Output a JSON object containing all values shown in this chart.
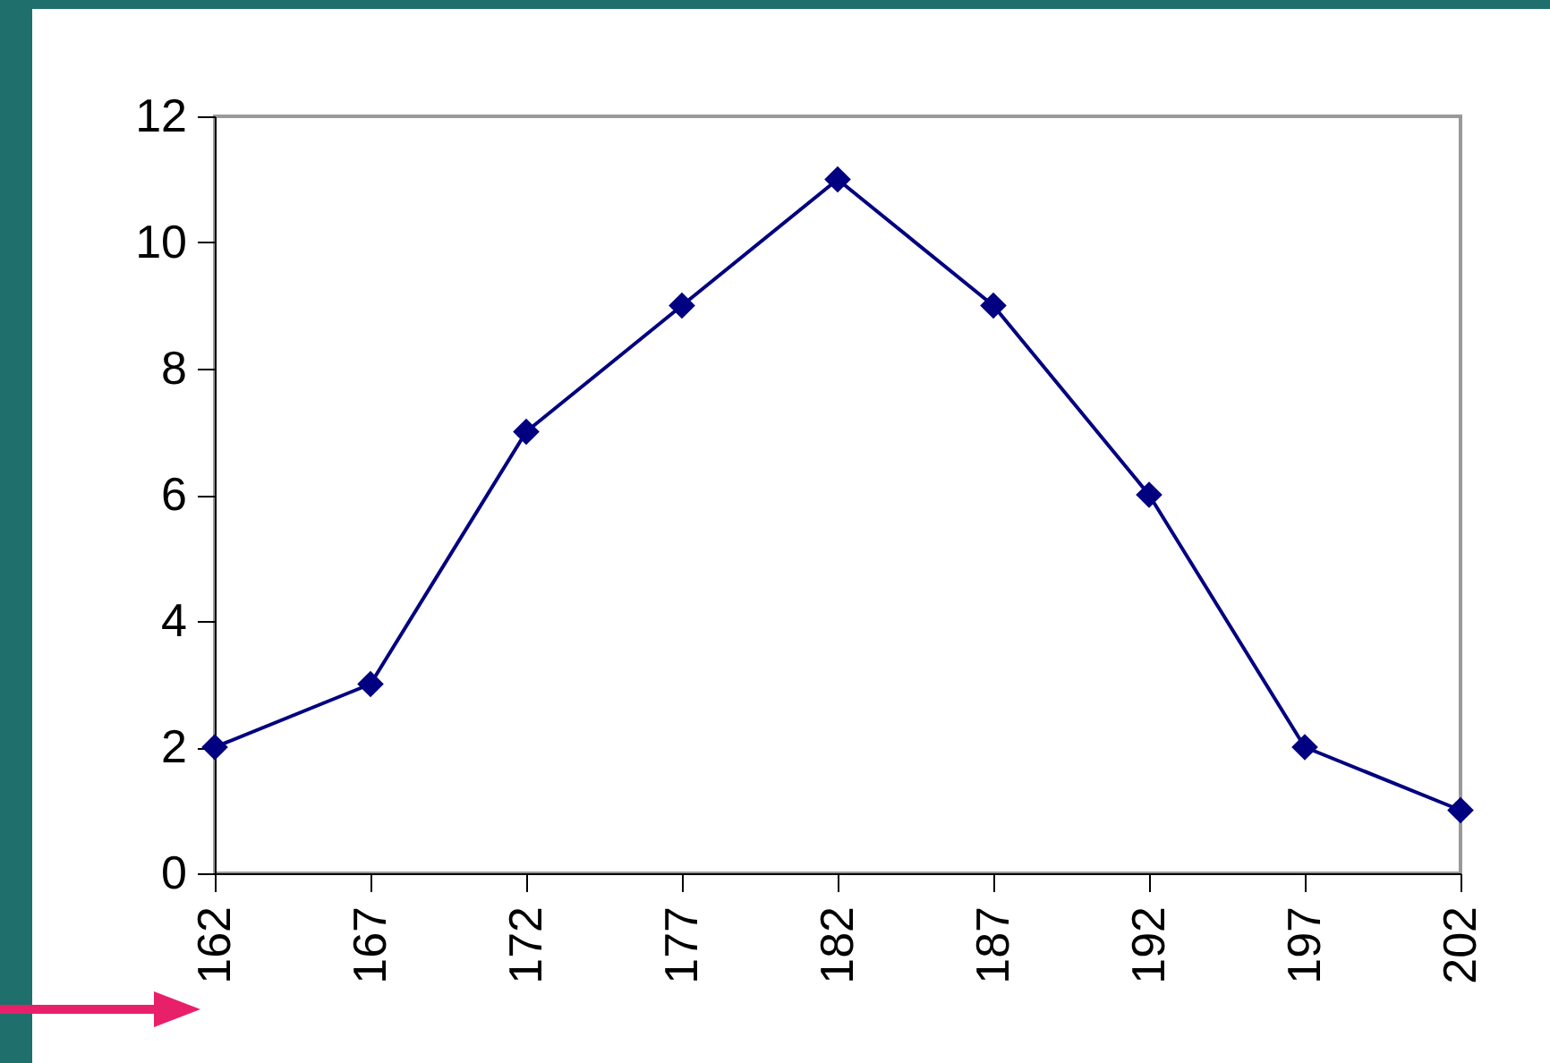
{
  "chart_data": {
    "type": "line",
    "categories": [
      "162",
      "167",
      "172",
      "177",
      "182",
      "187",
      "192",
      "197",
      "202"
    ],
    "series": [
      {
        "color": "#000080",
        "values": [
          2,
          3,
          7,
          9,
          11,
          9,
          6,
          2,
          1
        ]
      }
    ],
    "ylim": [
      0,
      12
    ],
    "yticks": [
      0,
      2,
      4,
      6,
      8,
      10,
      12
    ],
    "grid": false,
    "legend": false,
    "marker": "diamond",
    "line_style": "solid"
  }
}
